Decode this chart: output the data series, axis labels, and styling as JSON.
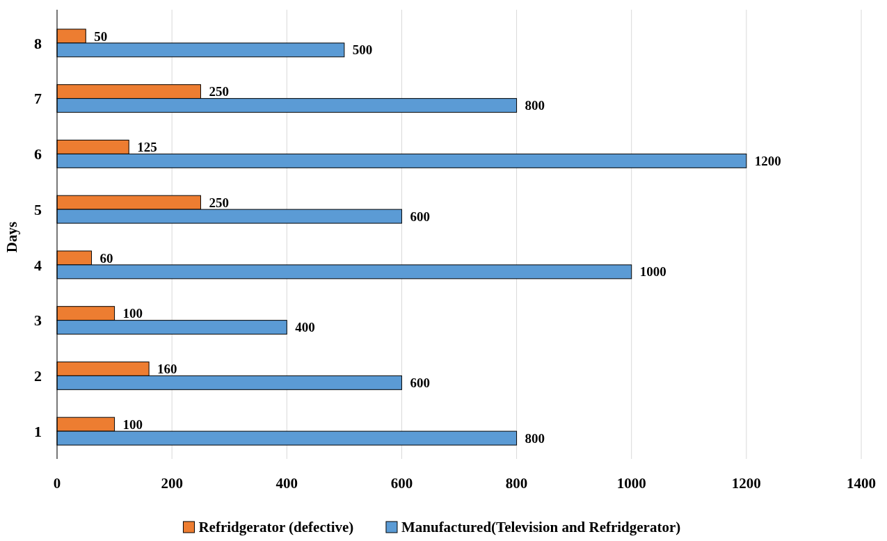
{
  "chart_data": {
    "type": "bar",
    "orientation": "horizontal",
    "ylabel": "Days",
    "categories": [
      "8",
      "7",
      "6",
      "5",
      "4",
      "3",
      "2",
      "1"
    ],
    "series": [
      {
        "name": "Refridgerator (defective)",
        "color": "#ed7d31",
        "values": [
          50,
          250,
          125,
          250,
          60,
          100,
          160,
          100
        ]
      },
      {
        "name": "Manufactured(Television and Refridgerator)",
        "color": "#5b9bd5",
        "values": [
          500,
          800,
          1200,
          600,
          1000,
          400,
          600,
          800
        ]
      }
    ],
    "xlim": [
      0,
      1400
    ],
    "xticks": [
      0,
      200,
      400,
      600,
      800,
      1000,
      1200,
      1400
    ],
    "grid": "x",
    "legend": "bottom",
    "data_labels": true
  }
}
